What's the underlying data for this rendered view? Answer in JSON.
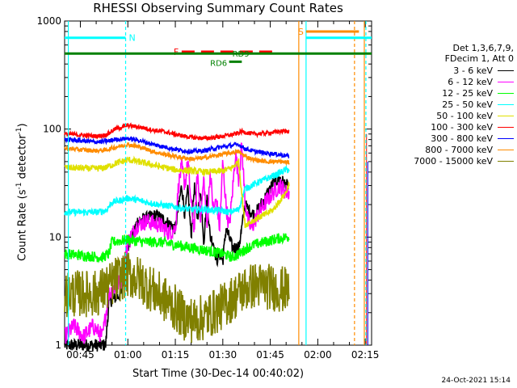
{
  "chart_data": {
    "type": "line",
    "title": "RHESSI Observing Summary Count Rates",
    "xlabel": "Start Time (30-Dec-14 00:40:02)",
    "ylabel": "Count Rate (s",
    "ylabel_sup": "-1",
    "ylabel_mid": " detector",
    "ylabel_sup2": "-1",
    "ylabel_end": ")",
    "y_scale": "log",
    "ylim": [
      1,
      1000
    ],
    "y_ticks": [
      "1",
      "10",
      "100",
      "1000"
    ],
    "xlim_minutes": [
      40.03,
      137
    ],
    "x_ticks": [
      {
        "label": "00:45",
        "min": 45
      },
      {
        "label": "01:00",
        "min": 60
      },
      {
        "label": "01:15",
        "min": 75
      },
      {
        "label": "01:30",
        "min": 90
      },
      {
        "label": "01:45",
        "min": 105
      },
      {
        "label": "02:00",
        "min": 120
      },
      {
        "label": "02:15",
        "min": 135
      }
    ],
    "legend": {
      "header": [
        "Det 1,3,6,7,9,",
        "FDecim 1, Att 0"
      ],
      "entries": [
        {
          "label": "3 - 6 keV",
          "color": "#000000"
        },
        {
          "label": "6 - 12 keV",
          "color": "#ff00ff"
        },
        {
          "label": "12 - 25 keV",
          "color": "#00ff00"
        },
        {
          "label": "25 - 50 keV",
          "color": "#00ffff"
        },
        {
          "label": "50 - 100 keV",
          "color": "#e0e000"
        },
        {
          "label": "100 - 300 keV",
          "color": "#ff0000"
        },
        {
          "label": "300 - 800 keV",
          "color": "#0000ff"
        },
        {
          "label": "800 - 7000 keV",
          "color": "#ff8c00"
        },
        {
          "label": "7000 - 15000 keV",
          "color": "#808000"
        }
      ]
    },
    "series": [
      {
        "name": "3 - 6 keV",
        "color": "#000000",
        "end": 111,
        "noise": 0.06,
        "points": [
          [
            40,
            1
          ],
          [
            53,
            1
          ],
          [
            54,
            2.5
          ],
          [
            58,
            3
          ],
          [
            60,
            8
          ],
          [
            63,
            14
          ],
          [
            66,
            15
          ],
          [
            69,
            16
          ],
          [
            72,
            14
          ],
          [
            75,
            12
          ],
          [
            77,
            30
          ],
          [
            78,
            16
          ],
          [
            79,
            28
          ],
          [
            80,
            10
          ],
          [
            81,
            30
          ],
          [
            82,
            15
          ],
          [
            83,
            28
          ],
          [
            84,
            9
          ],
          [
            85,
            24
          ],
          [
            86,
            10
          ],
          [
            87,
            9
          ],
          [
            88,
            6
          ],
          [
            89,
            7
          ],
          [
            90,
            6
          ],
          [
            91,
            12
          ],
          [
            92,
            10
          ],
          [
            93,
            8
          ],
          [
            95,
            8
          ],
          [
            96,
            12
          ],
          [
            97,
            20
          ],
          [
            98,
            18
          ],
          [
            100,
            16
          ],
          [
            102,
            20
          ],
          [
            104,
            25
          ],
          [
            106,
            32
          ],
          [
            108,
            35
          ],
          [
            110,
            30
          ]
        ]
      },
      {
        "name": "6 - 12 keV",
        "color": "#ff00ff",
        "end": 111,
        "noise": 0.08,
        "points": [
          [
            40,
            1.2
          ],
          [
            43,
            1.5
          ],
          [
            46,
            1.2
          ],
          [
            49,
            1.5
          ],
          [
            52,
            1.2
          ],
          [
            54,
            3
          ],
          [
            58,
            4
          ],
          [
            60,
            9
          ],
          [
            63,
            13
          ],
          [
            66,
            14
          ],
          [
            70,
            13
          ],
          [
            73,
            11
          ],
          [
            75,
            12
          ],
          [
            76,
            30
          ],
          [
            77,
            45
          ],
          [
            78,
            30
          ],
          [
            79,
            50
          ],
          [
            80,
            20
          ],
          [
            81,
            12
          ],
          [
            82,
            40
          ],
          [
            83,
            15
          ],
          [
            84,
            35
          ],
          [
            85,
            12
          ],
          [
            86,
            40
          ],
          [
            87,
            18
          ],
          [
            88,
            22
          ],
          [
            89,
            12
          ],
          [
            90,
            50
          ],
          [
            91,
            20
          ],
          [
            92,
            12
          ],
          [
            93,
            25
          ],
          [
            94,
            60
          ],
          [
            95,
            35
          ],
          [
            96,
            70
          ],
          [
            97,
            22
          ],
          [
            98,
            14
          ],
          [
            99,
            12
          ],
          [
            100,
            14
          ],
          [
            102,
            18
          ],
          [
            104,
            22
          ],
          [
            106,
            26
          ],
          [
            108,
            30
          ],
          [
            110,
            26
          ]
        ]
      },
      {
        "name": "12 - 25 keV",
        "color": "#00ff00",
        "end": 111,
        "noise": 0.05,
        "points": [
          [
            40,
            7
          ],
          [
            52,
            6.5
          ],
          [
            54,
            7
          ],
          [
            55,
            9
          ],
          [
            60,
            9.5
          ],
          [
            65,
            9
          ],
          [
            70,
            9
          ],
          [
            75,
            8.5
          ],
          [
            80,
            8
          ],
          [
            85,
            7.5
          ],
          [
            90,
            7
          ],
          [
            93,
            6.5
          ],
          [
            95,
            7
          ],
          [
            98,
            8
          ],
          [
            100,
            8.5
          ],
          [
            103,
            9
          ],
          [
            106,
            9.5
          ],
          [
            110,
            10
          ]
        ]
      },
      {
        "name": "25 - 50 keV",
        "color": "#00ffff",
        "end": 111,
        "noise": 0.03,
        "points": [
          [
            40,
            17
          ],
          [
            50,
            17
          ],
          [
            53,
            17.5
          ],
          [
            55,
            21
          ],
          [
            58,
            22
          ],
          [
            60,
            23
          ],
          [
            63,
            22
          ],
          [
            66,
            21
          ],
          [
            70,
            20
          ],
          [
            75,
            19
          ],
          [
            80,
            18
          ],
          [
            85,
            18
          ],
          [
            90,
            17.5
          ],
          [
            92,
            17
          ],
          [
            95,
            18
          ],
          [
            97,
            28
          ],
          [
            99,
            30
          ],
          [
            101,
            32
          ],
          [
            104,
            35
          ],
          [
            107,
            38
          ],
          [
            110,
            42
          ]
        ]
      },
      {
        "name": "50 - 100 keV",
        "color": "#e0e000",
        "end": 111,
        "noise": 0.03,
        "points": [
          [
            40,
            44
          ],
          [
            50,
            43
          ],
          [
            53,
            44
          ],
          [
            56,
            48
          ],
          [
            60,
            52
          ],
          [
            63,
            50
          ],
          [
            66,
            48
          ],
          [
            70,
            45
          ],
          [
            75,
            42
          ],
          [
            80,
            41
          ],
          [
            85,
            40
          ],
          [
            90,
            41
          ],
          [
            93,
            44
          ],
          [
            95,
            50
          ],
          [
            97,
            13
          ],
          [
            99,
            14
          ],
          [
            101,
            15
          ],
          [
            103,
            16
          ],
          [
            106,
            18
          ],
          [
            110,
            26
          ],
          [
            111,
            32
          ]
        ]
      },
      {
        "name": "100 - 300 keV",
        "color": "#ff0000",
        "end": 111,
        "noise": 0.02,
        "points": [
          [
            40,
            90
          ],
          [
            50,
            86
          ],
          [
            53,
            88
          ],
          [
            56,
            100
          ],
          [
            60,
            108
          ],
          [
            64,
            104
          ],
          [
            68,
            98
          ],
          [
            72,
            94
          ],
          [
            76,
            88
          ],
          [
            80,
            84
          ],
          [
            84,
            82
          ],
          [
            88,
            84
          ],
          [
            92,
            88
          ],
          [
            94,
            90
          ],
          [
            96,
            95
          ],
          [
            98,
            92
          ],
          [
            100,
            90
          ],
          [
            104,
            92
          ],
          [
            108,
            95
          ],
          [
            111,
            96
          ]
        ]
      },
      {
        "name": "300 - 800 keV",
        "color": "#0000ff",
        "end": 111,
        "noise": 0.02,
        "points": [
          [
            40,
            80
          ],
          [
            50,
            76
          ],
          [
            53,
            77
          ],
          [
            56,
            80
          ],
          [
            60,
            82
          ],
          [
            64,
            78
          ],
          [
            68,
            72
          ],
          [
            72,
            68
          ],
          [
            76,
            64
          ],
          [
            80,
            62
          ],
          [
            84,
            63
          ],
          [
            88,
            67
          ],
          [
            92,
            70
          ],
          [
            95,
            72
          ],
          [
            97,
            66
          ],
          [
            100,
            62
          ],
          [
            104,
            60
          ],
          [
            108,
            58
          ],
          [
            111,
            56
          ]
        ]
      },
      {
        "name": "800 - 7000 keV",
        "color": "#ff8c00",
        "end": 111,
        "noise": 0.02,
        "points": [
          [
            40,
            66
          ],
          [
            50,
            63
          ],
          [
            53,
            64
          ],
          [
            56,
            68
          ],
          [
            60,
            72
          ],
          [
            64,
            68
          ],
          [
            68,
            62
          ],
          [
            72,
            58
          ],
          [
            76,
            55
          ],
          [
            80,
            53
          ],
          [
            84,
            54
          ],
          [
            88,
            57
          ],
          [
            92,
            60
          ],
          [
            95,
            62
          ],
          [
            97,
            56
          ],
          [
            100,
            52
          ],
          [
            104,
            50
          ],
          [
            108,
            50
          ],
          [
            111,
            49
          ]
        ]
      },
      {
        "name": "7000 - 15000 keV",
        "color": "#808000",
        "end": 111,
        "noise": 0.22,
        "points": [
          [
            40,
            3
          ],
          [
            50,
            3
          ],
          [
            54,
            3.5
          ],
          [
            56,
            4
          ],
          [
            60,
            4.5
          ],
          [
            64,
            4
          ],
          [
            68,
            3.2
          ],
          [
            72,
            2.6
          ],
          [
            75,
            2.2
          ],
          [
            78,
            1.8
          ],
          [
            81,
            1.7
          ],
          [
            84,
            1.8
          ],
          [
            87,
            2
          ],
          [
            90,
            2.3
          ],
          [
            93,
            2.7
          ],
          [
            96,
            3.2
          ],
          [
            100,
            3.6
          ],
          [
            104,
            3.5
          ],
          [
            108,
            3.3
          ],
          [
            111,
            3.2
          ]
        ]
      }
    ],
    "annotations": {
      "N": {
        "label": "N",
        "color": "#00ffff"
      },
      "F": {
        "label": "F",
        "color": "#ff0000"
      },
      "S": {
        "label": "S",
        "color": "#ff8c00"
      },
      "RD9": {
        "label": "RD9",
        "color": "#008000"
      },
      "RD6": {
        "label": "RD6",
        "color": "#008000"
      }
    }
  },
  "footer": {
    "timestamp": "24-Oct-2021 15:14"
  }
}
